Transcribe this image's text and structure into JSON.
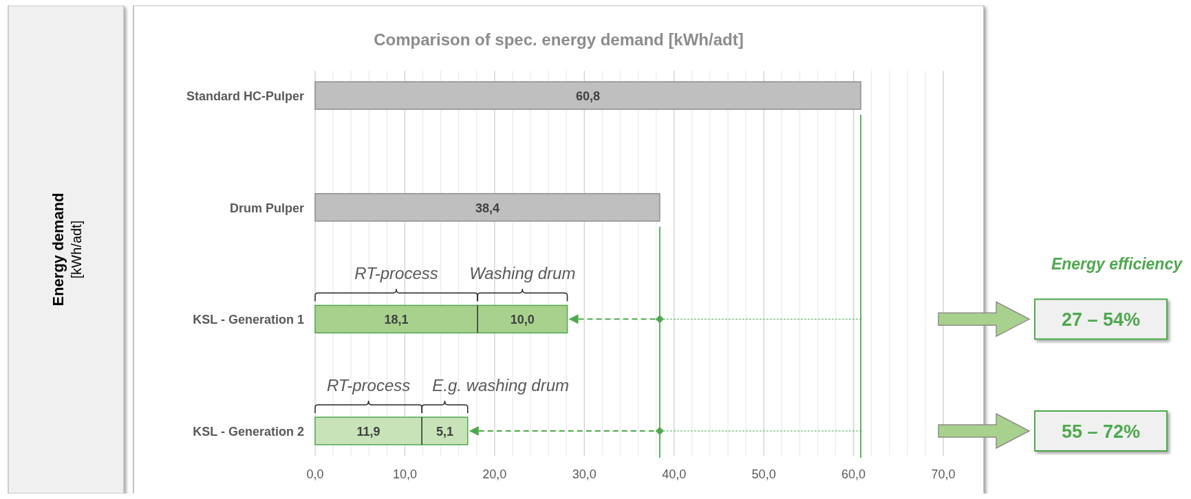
{
  "chart_data": {
    "type": "bar",
    "orientation": "horizontal",
    "stacked": true,
    "title": "Comparison of spec. energy demand [kWh/adt]",
    "categories": [
      "Standard HC-Pulper",
      "Drum Pulper",
      "KSL - Generation 1",
      "KSL - Generation 2"
    ],
    "series": [
      {
        "values": [
          60.8,
          38.4,
          18.1,
          11.9
        ],
        "colors": [
          "#bfbfbf",
          "#bfbfbf",
          "#a9d18e",
          "#c9e3b8"
        ],
        "value_labels": [
          "60,8",
          "38,4",
          "18,1",
          "11,9"
        ]
      },
      {
        "values": [
          null,
          null,
          10.0,
          5.1
        ],
        "colors": [
          null,
          null,
          "#a9d18e",
          "#c9e3b8"
        ],
        "value_labels": [
          null,
          null,
          "10,0",
          "5,1"
        ]
      }
    ],
    "xlim": [
      0,
      70
    ],
    "xticks": [
      {
        "value": 0,
        "label": "0,0"
      },
      {
        "value": 2,
        "label": null
      },
      {
        "value": 4,
        "label": null
      },
      {
        "value": 6,
        "label": null
      },
      {
        "value": 8,
        "label": null
      },
      {
        "value": 10,
        "label": "10,0"
      },
      {
        "value": 12,
        "label": null
      },
      {
        "value": 14,
        "label": null
      },
      {
        "value": 16,
        "label": null
      },
      {
        "value": 18,
        "label": null
      },
      {
        "value": 20,
        "label": "20,0"
      },
      {
        "value": 22,
        "label": null
      },
      {
        "value": 24,
        "label": null
      },
      {
        "value": 26,
        "label": null
      },
      {
        "value": 28,
        "label": null
      },
      {
        "value": 30,
        "label": "30,0"
      },
      {
        "value": 32,
        "label": null
      },
      {
        "value": 34,
        "label": null
      },
      {
        "value": 36,
        "label": null
      },
      {
        "value": 38,
        "label": null
      },
      {
        "value": 40,
        "label": "40,0"
      },
      {
        "value": 42,
        "label": null
      },
      {
        "value": 44,
        "label": null
      },
      {
        "value": 46,
        "label": null
      },
      {
        "value": 48,
        "label": null
      },
      {
        "value": 50,
        "label": "50,0"
      },
      {
        "value": 52,
        "label": null
      },
      {
        "value": 54,
        "label": null
      },
      {
        "value": 56,
        "label": null
      },
      {
        "value": 58,
        "label": null
      },
      {
        "value": 60,
        "label": "60,0"
      },
      {
        "value": 62,
        "label": null
      },
      {
        "value": 64,
        "label": null
      },
      {
        "value": 66,
        "label": null
      },
      {
        "value": 68,
        "label": null
      },
      {
        "value": 70,
        "label": "70,0"
      }
    ],
    "grid": "x",
    "ref_lines": [
      {
        "axis": "x",
        "value": 60.8,
        "color": "#4ea84e"
      },
      {
        "axis": "x",
        "value": 38.4,
        "color": "#4ea84e"
      }
    ],
    "annotations": [
      "Energy demand [kWh/adt]",
      "RT-process",
      "Washing drum",
      "RT-process",
      "E.g. washing drum",
      "Energy efficiency",
      "27 – 54%",
      "55 – 72%"
    ]
  }
}
